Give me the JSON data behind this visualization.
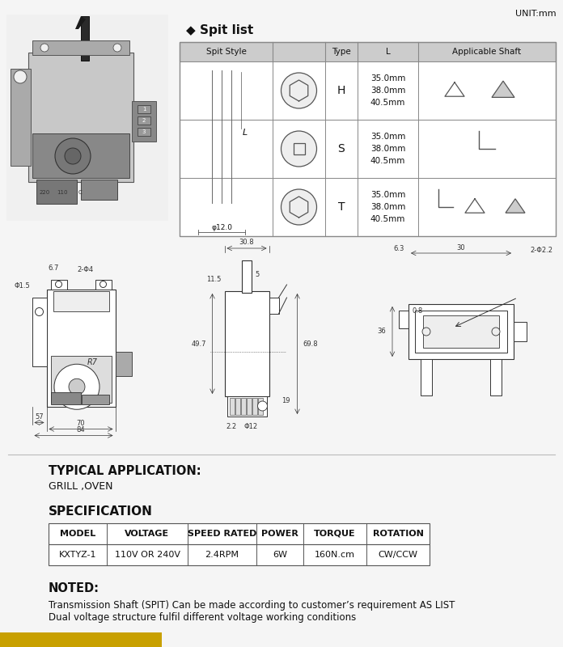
{
  "title_unit": "UNIT:mm",
  "spit_list_title": "◆ Spit list",
  "typical_app_title": "TYPICAL APPLICATION:",
  "typical_app_value": "GRILL ,OVEN",
  "spec_title": "SPECIFICATION",
  "spec_headers": [
    "MODEL",
    "VOLTAGE",
    "SPEED RATED",
    "POWER",
    "TORQUE",
    "ROTATION"
  ],
  "spec_row": [
    "KXTYZ-1",
    "110V OR 240V",
    "2.4RPM",
    "6W",
    "160N.cm",
    "CW/CCW"
  ],
  "noted_title": "NOTED:",
  "noted_lines": [
    "Transmission Shaft (SPIT) Can be made according to customer’s requirement AS LIST",
    "Dual voltage structure fulfil different voltage working conditions"
  ],
  "gold_bar_color": "#C8A000",
  "bg_color": "#F5F5F5",
  "table_header_bg": "#CCCCCC",
  "table_border": "#888888",
  "text_color": "#111111",
  "dim_color": "#333333"
}
